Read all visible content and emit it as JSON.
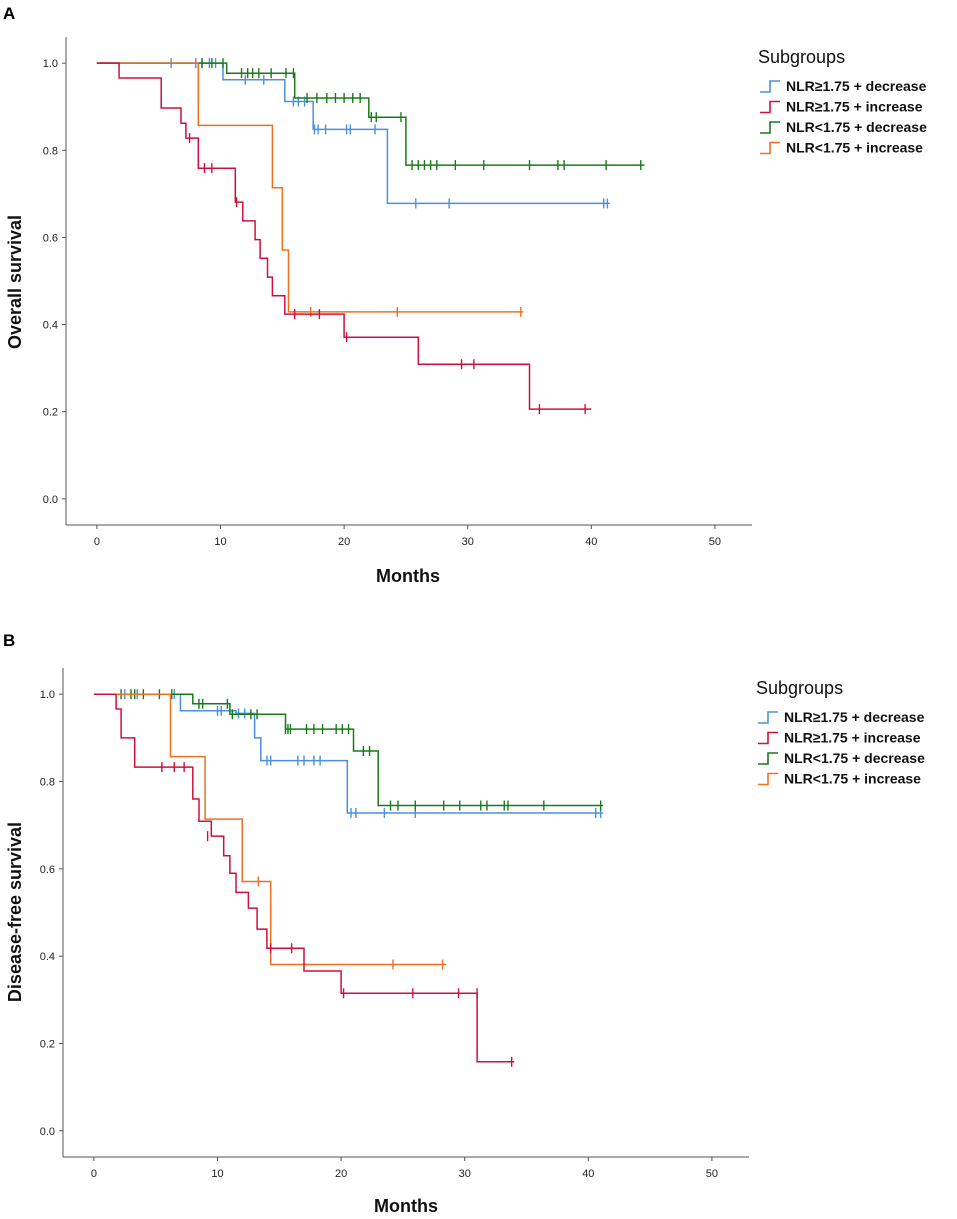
{
  "colors": {
    "NLR≥1.75 + decrease": "#4a90e2",
    "NLR≥1.75 + increase": "#d0103a",
    "NLR<1.75 + decrease": "#1a7a1a",
    "NLR<1.75 + increase": "#f07020",
    "axis": "#555555"
  },
  "chart_data": [
    {
      "type": "line",
      "subtype": "kaplan-meier",
      "panel": "A",
      "title": "",
      "xlabel": "Months",
      "ylabel": "Overall survival",
      "xlim": [
        -2.5,
        53
      ],
      "ylim": [
        -0.06,
        1.06
      ],
      "xticks": [
        0,
        10,
        20,
        30,
        40,
        50
      ],
      "yticks": [
        0.0,
        0.2,
        0.4,
        0.6,
        0.8,
        1.0
      ],
      "xtick_labels": [
        "0",
        "10",
        "20",
        "30",
        "40",
        "50"
      ],
      "ytick_labels": [
        "0.0",
        "0.2",
        "0.4",
        "0.6",
        "0.8",
        "1.0"
      ],
      "legend": {
        "title": "Subgroups",
        "position": "right"
      },
      "series": [
        {
          "name": "NLR≥1.75 + decrease",
          "steps": [
            [
              0,
              1.0
            ],
            [
              10.2,
              0.962
            ],
            [
              15.2,
              0.912
            ],
            [
              17.5,
              0.848
            ],
            [
              23.5,
              0.678
            ]
          ],
          "end": 41.5,
          "censors": [
            [
              6,
              1.0
            ],
            [
              8,
              1.0
            ],
            [
              8.5,
              1.0
            ],
            [
              9.1,
              1.0
            ],
            [
              9.6,
              1.0
            ],
            [
              12,
              0.962
            ],
            [
              13.5,
              0.962
            ],
            [
              15.9,
              0.912
            ],
            [
              16.3,
              0.912
            ],
            [
              16.8,
              0.912
            ],
            [
              17.6,
              0.848
            ],
            [
              17.9,
              0.848
            ],
            [
              18.5,
              0.848
            ],
            [
              20.2,
              0.848
            ],
            [
              20.5,
              0.848
            ],
            [
              22.5,
              0.848
            ],
            [
              25.8,
              0.678
            ],
            [
              28.5,
              0.678
            ],
            [
              41,
              0.678
            ],
            [
              41.3,
              0.678
            ]
          ]
        },
        {
          "name": "NLR≥1.75 + increase",
          "steps": [
            [
              0,
              1.0
            ],
            [
              1.8,
              0.966
            ],
            [
              5.2,
              0.897
            ],
            [
              6.8,
              0.862
            ],
            [
              7.2,
              0.828
            ],
            [
              8.2,
              0.759
            ],
            [
              11.2,
              0.681
            ],
            [
              11.8,
              0.638
            ],
            [
              12.8,
              0.595
            ],
            [
              13.2,
              0.552
            ],
            [
              13.8,
              0.509
            ],
            [
              14.2,
              0.466
            ],
            [
              15.2,
              0.424
            ],
            [
              20,
              0.371
            ],
            [
              26,
              0.309
            ],
            [
              35,
              0.206
            ]
          ],
          "end": 40,
          "censors": [
            [
              7.5,
              0.828
            ],
            [
              8.7,
              0.759
            ],
            [
              9.3,
              0.759
            ],
            [
              11.3,
              0.681
            ],
            [
              16,
              0.424
            ],
            [
              18,
              0.424
            ],
            [
              20.2,
              0.371
            ],
            [
              29.5,
              0.309
            ],
            [
              30.5,
              0.309
            ],
            [
              35.8,
              0.206
            ],
            [
              39.5,
              0.206
            ]
          ]
        },
        {
          "name": "NLR<1.75 + decrease",
          "steps": [
            [
              0,
              1.0
            ],
            [
              10.5,
              0.977
            ],
            [
              16,
              0.92
            ],
            [
              22,
              0.876
            ],
            [
              25,
              0.766
            ]
          ],
          "end": 44.3,
          "censors": [
            [
              8.5,
              1.0
            ],
            [
              9.3,
              1.0
            ],
            [
              10.2,
              1.0
            ],
            [
              11.7,
              0.977
            ],
            [
              12.2,
              0.977
            ],
            [
              12.6,
              0.977
            ],
            [
              13.1,
              0.977
            ],
            [
              14.1,
              0.977
            ],
            [
              15.3,
              0.977
            ],
            [
              15.9,
              0.977
            ],
            [
              17,
              0.92
            ],
            [
              17.8,
              0.92
            ],
            [
              18.6,
              0.92
            ],
            [
              19.3,
              0.92
            ],
            [
              20,
              0.92
            ],
            [
              20.7,
              0.92
            ],
            [
              21.3,
              0.92
            ],
            [
              22.2,
              0.876
            ],
            [
              22.6,
              0.876
            ],
            [
              24.6,
              0.876
            ],
            [
              25.5,
              0.766
            ],
            [
              26,
              0.766
            ],
            [
              26.5,
              0.766
            ],
            [
              27,
              0.766
            ],
            [
              27.5,
              0.766
            ],
            [
              29,
              0.766
            ],
            [
              31.3,
              0.766
            ],
            [
              35,
              0.766
            ],
            [
              37.3,
              0.766
            ],
            [
              37.8,
              0.766
            ],
            [
              41.2,
              0.766
            ],
            [
              44,
              0.766
            ]
          ]
        },
        {
          "name": "NLR<1.75 + increase",
          "steps": [
            [
              0,
              1.0
            ],
            [
              8.2,
              0.857
            ],
            [
              14.2,
              0.714
            ],
            [
              15,
              0.571
            ],
            [
              15.5,
              0.429
            ]
          ],
          "end": 34.5,
          "censors": [
            [
              17.3,
              0.429
            ],
            [
              24.3,
              0.429
            ],
            [
              34.3,
              0.429
            ]
          ]
        }
      ]
    },
    {
      "type": "line",
      "subtype": "kaplan-meier",
      "panel": "B",
      "title": "",
      "xlabel": "Months",
      "ylabel": "Disease-free survival",
      "xlim": [
        -2.5,
        53
      ],
      "ylim": [
        -0.06,
        1.06
      ],
      "xticks": [
        0,
        10,
        20,
        30,
        40,
        50
      ],
      "yticks": [
        0.0,
        0.2,
        0.4,
        0.6,
        0.8,
        1.0
      ],
      "xtick_labels": [
        "0",
        "10",
        "20",
        "30",
        "40",
        "50"
      ],
      "ytick_labels": [
        "0.0",
        "0.2",
        "0.4",
        "0.6",
        "0.8",
        "1.0"
      ],
      "legend": {
        "title": "Subgroups",
        "position": "right"
      },
      "series": [
        {
          "name": "NLR≥1.75 + decrease",
          "steps": [
            [
              0,
              1.0
            ],
            [
              7,
              0.962
            ],
            [
              11.5,
              0.956
            ],
            [
              13,
              0.9
            ],
            [
              13.5,
              0.848
            ],
            [
              20.5,
              0.728
            ]
          ],
          "end": 41.2,
          "censors": [
            [
              2.5,
              1.0
            ],
            [
              3.5,
              1.0
            ],
            [
              6.5,
              1.0
            ],
            [
              10,
              0.962
            ],
            [
              10.3,
              0.962
            ],
            [
              11.7,
              0.956
            ],
            [
              12.2,
              0.956
            ],
            [
              14,
              0.848
            ],
            [
              14.3,
              0.848
            ],
            [
              16.5,
              0.848
            ],
            [
              17,
              0.848
            ],
            [
              17.8,
              0.848
            ],
            [
              18.3,
              0.848
            ],
            [
              20.8,
              0.728
            ],
            [
              21.2,
              0.728
            ],
            [
              23.5,
              0.728
            ],
            [
              26,
              0.728
            ],
            [
              40.6,
              0.728
            ],
            [
              41,
              0.728
            ]
          ]
        },
        {
          "name": "NLR≥1.75 + increase",
          "steps": [
            [
              0,
              1.0
            ],
            [
              1.8,
              0.966
            ],
            [
              2.2,
              0.9
            ],
            [
              3.3,
              0.833
            ],
            [
              8,
              0.76
            ],
            [
              8.5,
              0.709
            ],
            [
              9.5,
              0.675
            ],
            [
              10.5,
              0.63
            ],
            [
              11,
              0.59
            ],
            [
              11.5,
              0.546
            ],
            [
              12.5,
              0.51
            ],
            [
              13.2,
              0.462
            ],
            [
              14,
              0.418
            ],
            [
              17,
              0.366
            ],
            [
              20,
              0.315
            ],
            [
              31,
              0.158
            ]
          ],
          "end": 34,
          "censors": [
            [
              5.5,
              0.833
            ],
            [
              6.5,
              0.833
            ],
            [
              7.3,
              0.833
            ],
            [
              9.2,
              0.675
            ],
            [
              14.3,
              0.418
            ],
            [
              16,
              0.418
            ],
            [
              20.2,
              0.315
            ],
            [
              25.8,
              0.315
            ],
            [
              29.5,
              0.315
            ],
            [
              31,
              0.315
            ],
            [
              33.8,
              0.158
            ]
          ]
        },
        {
          "name": "NLR<1.75 + decrease",
          "steps": [
            [
              0,
              1.0
            ],
            [
              8,
              0.978
            ],
            [
              11,
              0.954
            ],
            [
              15.5,
              0.92
            ],
            [
              21,
              0.87
            ],
            [
              23,
              0.745
            ]
          ],
          "end": 41.2,
          "censors": [
            [
              2.2,
              1.0
            ],
            [
              3,
              1.0
            ],
            [
              3.3,
              1.0
            ],
            [
              4,
              1.0
            ],
            [
              5.3,
              1.0
            ],
            [
              6.3,
              1.0
            ],
            [
              8.5,
              0.978
            ],
            [
              8.8,
              0.978
            ],
            [
              10.8,
              0.978
            ],
            [
              11.2,
              0.954
            ],
            [
              12.7,
              0.954
            ],
            [
              13.2,
              0.954
            ],
            [
              15.5,
              0.92
            ],
            [
              15.7,
              0.92
            ],
            [
              15.9,
              0.92
            ],
            [
              17.2,
              0.92
            ],
            [
              17.8,
              0.92
            ],
            [
              18.5,
              0.92
            ],
            [
              19.6,
              0.92
            ],
            [
              20.1,
              0.92
            ],
            [
              20.6,
              0.92
            ],
            [
              21.8,
              0.87
            ],
            [
              22.3,
              0.87
            ],
            [
              24,
              0.745
            ],
            [
              24.6,
              0.745
            ],
            [
              26,
              0.745
            ],
            [
              28.3,
              0.745
            ],
            [
              29.6,
              0.745
            ],
            [
              31.3,
              0.745
            ],
            [
              31.8,
              0.745
            ],
            [
              33.2,
              0.745
            ],
            [
              33.5,
              0.745
            ],
            [
              36.4,
              0.745
            ],
            [
              41,
              0.745
            ]
          ]
        },
        {
          "name": "NLR<1.75 + increase",
          "steps": [
            [
              0,
              1.0
            ],
            [
              6.2,
              0.857
            ],
            [
              9,
              0.714
            ],
            [
              12,
              0.571
            ],
            [
              14.3,
              0.381
            ]
          ],
          "end": 28.5,
          "censors": [
            [
              13.3,
              0.571
            ],
            [
              24.2,
              0.381
            ],
            [
              28.2,
              0.381
            ]
          ]
        }
      ]
    }
  ]
}
